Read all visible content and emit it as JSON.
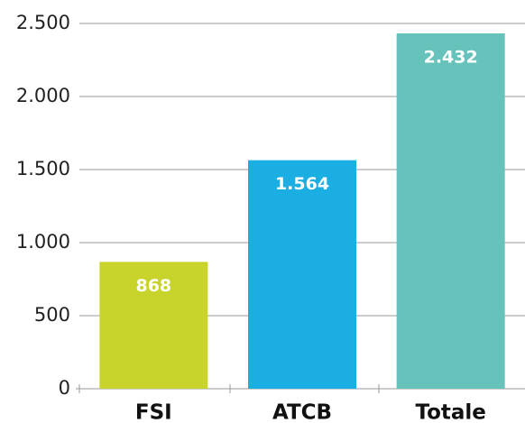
{
  "chart_data": {
    "type": "bar",
    "categories": [
      "FSI",
      "ATCB",
      "Totale"
    ],
    "values": [
      868,
      1564,
      2432
    ],
    "value_labels": [
      "868",
      "1.564",
      "2.432"
    ],
    "colors": [
      "#c8d42b",
      "#1aaee3",
      "#66c2bb"
    ],
    "ylim": [
      0,
      2500
    ],
    "yticks": [
      0,
      500,
      {
        "value": 1000,
        "label": "1.000"
      },
      {
        "value": 1500,
        "label": "1.500"
      },
      {
        "value": 2000,
        "label": "2.000"
      },
      {
        "value": 2500,
        "label": "2.500"
      }
    ],
    "grid": true
  }
}
